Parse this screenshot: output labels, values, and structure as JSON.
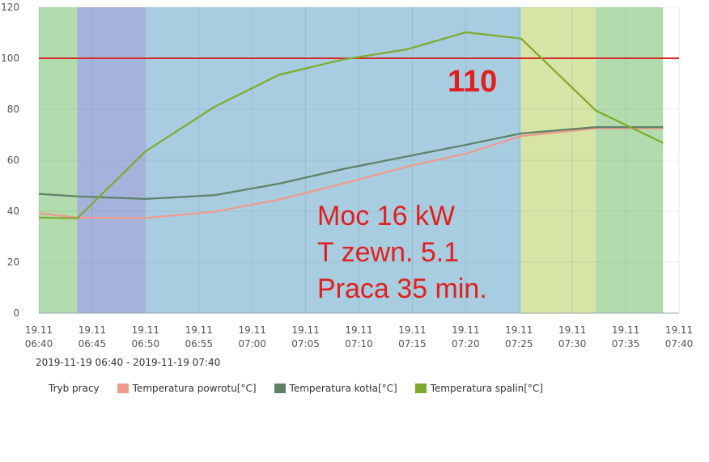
{
  "chart_data": {
    "type": "line",
    "x_ticks": [
      [
        "19.11",
        "06:40"
      ],
      [
        "19.11",
        "06:45"
      ],
      [
        "19.11",
        "06:50"
      ],
      [
        "19.11",
        "06:55"
      ],
      [
        "19.11",
        "07:00"
      ],
      [
        "19.11",
        "07:05"
      ],
      [
        "19.11",
        "07:10"
      ],
      [
        "19.11",
        "07:15"
      ],
      [
        "19.11",
        "07:20"
      ],
      [
        "19.11",
        "07:25"
      ],
      [
        "19.11",
        "07:30"
      ],
      [
        "19.11",
        "07:35"
      ],
      [
        "19.11",
        "07:40"
      ]
    ],
    "xlim_minutes": [
      0,
      60
    ],
    "ylim": [
      0,
      120
    ],
    "y_ticks": [
      0,
      20,
      40,
      60,
      80,
      100,
      120
    ],
    "grid": true,
    "mode_bands": {
      "name": "Tryb pracy",
      "segments": [
        {
          "from": 0,
          "to": 3.6,
          "color": "#b2dcae"
        },
        {
          "from": 3.6,
          "to": 10,
          "color": "#a5b3dc"
        },
        {
          "from": 10,
          "to": 45.2,
          "color": "#a9cde0"
        },
        {
          "from": 45.2,
          "to": 52.2,
          "color": "#d6e4a6"
        },
        {
          "from": 52.2,
          "to": 58.5,
          "color": "#b2dcae"
        }
      ]
    },
    "reference_line": {
      "y": 100,
      "color": "#d62a2a"
    },
    "series": [
      {
        "name": "Temperatura powrotu[°C]",
        "color": "#ef9a8c",
        "points": [
          [
            0,
            39.2
          ],
          [
            3.6,
            37.5
          ],
          [
            10,
            37.3
          ],
          [
            16.5,
            39.8
          ],
          [
            22.5,
            44.5
          ],
          [
            28.5,
            50.8
          ],
          [
            34.5,
            57.5
          ],
          [
            40,
            62.5
          ],
          [
            45.2,
            69.5
          ],
          [
            52.2,
            72.5
          ],
          [
            58.5,
            72.5
          ]
        ]
      },
      {
        "name": "Temperatura kotła[°C]",
        "color": "#5e8068",
        "points": [
          [
            0,
            46.8
          ],
          [
            3.6,
            45.8
          ],
          [
            10,
            44.8
          ],
          [
            16.5,
            46.3
          ],
          [
            22.5,
            50.8
          ],
          [
            28.5,
            56.5
          ],
          [
            34.5,
            61.5
          ],
          [
            40,
            66
          ],
          [
            45.2,
            70.5
          ],
          [
            52.2,
            73
          ],
          [
            58.5,
            73
          ]
        ]
      },
      {
        "name": "Temperatura spalin[°C]",
        "color": "#7daa2c",
        "points": [
          [
            0,
            37.5
          ],
          [
            3.6,
            37.2
          ],
          [
            10,
            63.5
          ],
          [
            16.5,
            81
          ],
          [
            22.5,
            93.5
          ],
          [
            28.5,
            99.5
          ],
          [
            34.5,
            103.5
          ],
          [
            40,
            110.2
          ],
          [
            45.2,
            107.7
          ],
          [
            52.2,
            79.5
          ],
          [
            58.5,
            66.8
          ]
        ]
      }
    ]
  },
  "annotations": {
    "value_110": "110",
    "power": "Moc 16 kW",
    "outside_temp": "T zewn. 5.1",
    "runtime": "Praca 35 min."
  },
  "range_label": "2019-11-19 06:40 - 2019-11-19 07:40",
  "legend": [
    {
      "label": "Tryb pracy",
      "color": ""
    },
    {
      "label": "Temperatura powrotu[°C]",
      "color": "#ef9a8c"
    },
    {
      "label": "Temperatura kotła[°C]",
      "color": "#5e8068"
    },
    {
      "label": "Temperatura spalin[°C]",
      "color": "#7daa2c"
    }
  ]
}
